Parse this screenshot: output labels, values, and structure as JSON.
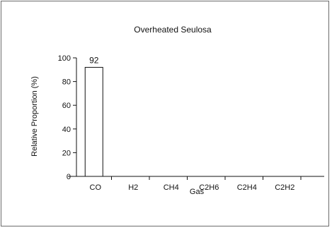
{
  "chart_data": {
    "type": "bar",
    "title": "Overheated Seulosa",
    "xlabel": "Gas",
    "ylabel": "Relative Proportion (%)",
    "categories": [
      "CO",
      "H2",
      "CH4",
      "C2H6",
      "C2H4",
      "C2H2"
    ],
    "values": [
      92,
      0,
      0,
      0,
      0,
      0
    ],
    "data_labels": [
      "92",
      "",
      "",
      "",
      "",
      ""
    ],
    "ylim": [
      0,
      100
    ],
    "yticks": [
      0,
      20,
      40,
      60,
      80,
      100
    ],
    "grid": false,
    "legend": "none",
    "colors": {
      "bar_fill": "#ffffff",
      "bar_stroke": "#111111",
      "axis": "#111111",
      "frame": "#6b6b6b"
    }
  }
}
